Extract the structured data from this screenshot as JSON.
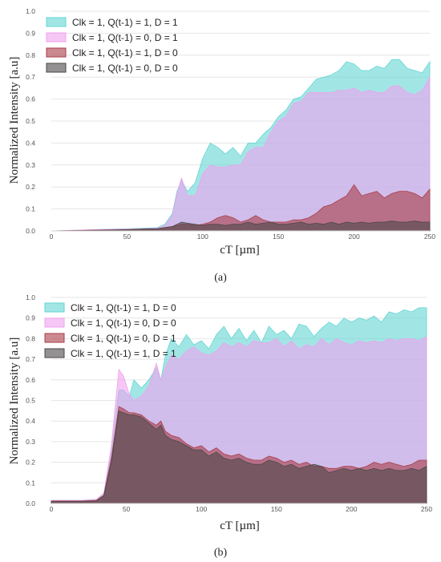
{
  "chart_data": [
    {
      "type": "area",
      "caption": "(a)",
      "xlabel": "cT [µm]",
      "ylabel": "Normalized Intensity [a.u]",
      "xlim": [
        0,
        250
      ],
      "ylim": [
        0,
        1.0
      ],
      "xticks": [
        0,
        50,
        100,
        150,
        200,
        250
      ],
      "yticks": [
        0.0,
        0.1,
        0.2,
        0.3,
        0.4,
        0.5,
        0.6,
        0.7,
        0.8,
        0.9,
        1.0
      ],
      "grid": "horizontal",
      "legend_position": "top-left",
      "x": [
        0,
        25,
        50,
        60,
        70,
        75,
        80,
        83,
        86,
        90,
        95,
        100,
        105,
        110,
        115,
        120,
        125,
        130,
        135,
        140,
        145,
        150,
        155,
        160,
        165,
        170,
        175,
        180,
        185,
        190,
        195,
        200,
        205,
        210,
        215,
        220,
        225,
        230,
        235,
        240,
        245,
        250
      ],
      "series": [
        {
          "name": "Clk = 1, Q(t-1) = 1, D = 1",
          "color": "#62d6d4",
          "values": [
            0.0,
            0.005,
            0.01,
            0.012,
            0.015,
            0.03,
            0.08,
            0.18,
            0.23,
            0.18,
            0.22,
            0.33,
            0.4,
            0.38,
            0.35,
            0.38,
            0.34,
            0.4,
            0.4,
            0.44,
            0.47,
            0.52,
            0.55,
            0.6,
            0.61,
            0.65,
            0.69,
            0.7,
            0.71,
            0.73,
            0.77,
            0.76,
            0.73,
            0.73,
            0.75,
            0.74,
            0.78,
            0.78,
            0.74,
            0.73,
            0.72,
            0.77
          ]
        },
        {
          "name": "Clk = 1, Q(t-1) = 0, D = 1",
          "color": "#f0a2ee",
          "values": [
            0.0,
            0.005,
            0.008,
            0.01,
            0.012,
            0.025,
            0.07,
            0.17,
            0.24,
            0.16,
            0.16,
            0.26,
            0.3,
            0.29,
            0.29,
            0.3,
            0.3,
            0.36,
            0.38,
            0.38,
            0.45,
            0.5,
            0.52,
            0.58,
            0.59,
            0.63,
            0.63,
            0.63,
            0.63,
            0.64,
            0.64,
            0.65,
            0.63,
            0.64,
            0.63,
            0.63,
            0.66,
            0.66,
            0.63,
            0.62,
            0.64,
            0.7
          ]
        },
        {
          "name": "Clk = 1, Q(t-1) = 1, D = 0",
          "color": "#a93c48",
          "values": [
            0.0,
            0.003,
            0.006,
            0.008,
            0.01,
            0.015,
            0.02,
            0.025,
            0.03,
            0.03,
            0.025,
            0.03,
            0.04,
            0.06,
            0.07,
            0.06,
            0.04,
            0.05,
            0.07,
            0.05,
            0.04,
            0.04,
            0.04,
            0.05,
            0.05,
            0.06,
            0.08,
            0.11,
            0.12,
            0.14,
            0.16,
            0.21,
            0.16,
            0.17,
            0.18,
            0.15,
            0.17,
            0.18,
            0.18,
            0.17,
            0.15,
            0.19
          ]
        },
        {
          "name": "Clk = 1, Q(t-1) = 0, D = 0",
          "color": "#4b4747",
          "values": [
            0.0,
            0.002,
            0.005,
            0.008,
            0.01,
            0.015,
            0.02,
            0.03,
            0.04,
            0.035,
            0.03,
            0.025,
            0.03,
            0.03,
            0.025,
            0.03,
            0.03,
            0.04,
            0.03,
            0.035,
            0.04,
            0.03,
            0.03,
            0.035,
            0.04,
            0.03,
            0.035,
            0.03,
            0.04,
            0.03,
            0.04,
            0.035,
            0.04,
            0.035,
            0.04,
            0.04,
            0.045,
            0.04,
            0.04,
            0.045,
            0.04,
            0.04
          ]
        }
      ]
    },
    {
      "type": "area",
      "caption": "(b)",
      "xlabel": "cT [µm]",
      "ylabel": "Normalized Intensity [a.u]",
      "xlim": [
        0,
        250
      ],
      "ylim": [
        0,
        1.0
      ],
      "xticks": [
        0,
        50,
        100,
        150,
        200,
        250
      ],
      "yticks": [
        0.0,
        0.1,
        0.2,
        0.3,
        0.4,
        0.5,
        0.6,
        0.7,
        0.8,
        0.9,
        1.0
      ],
      "grid": "horizontal",
      "legend_position": "top-left",
      "x": [
        0,
        10,
        20,
        30,
        35,
        40,
        45,
        48,
        52,
        55,
        60,
        65,
        70,
        73,
        76,
        80,
        85,
        90,
        95,
        100,
        105,
        110,
        115,
        120,
        125,
        130,
        135,
        140,
        145,
        150,
        155,
        160,
        165,
        170,
        175,
        180,
        185,
        190,
        195,
        200,
        205,
        210,
        215,
        220,
        225,
        230,
        235,
        240,
        245,
        250
      ],
      "series": [
        {
          "name": "Clk = 1, Q(t-1) = 1, D = 0",
          "color": "#62d6d4",
          "values": [
            0.015,
            0.015,
            0.015,
            0.02,
            0.05,
            0.25,
            0.55,
            0.55,
            0.52,
            0.6,
            0.56,
            0.6,
            0.66,
            0.6,
            0.72,
            0.8,
            0.76,
            0.82,
            0.77,
            0.79,
            0.75,
            0.82,
            0.86,
            0.8,
            0.85,
            0.79,
            0.84,
            0.78,
            0.86,
            0.82,
            0.84,
            0.8,
            0.87,
            0.86,
            0.81,
            0.85,
            0.88,
            0.86,
            0.9,
            0.88,
            0.9,
            0.89,
            0.91,
            0.88,
            0.93,
            0.92,
            0.94,
            0.93,
            0.95,
            0.95
          ]
        },
        {
          "name": "Clk = 1, Q(t-1) = 0, D = 0",
          "color": "#f0a2ee",
          "values": [
            0.015,
            0.015,
            0.015,
            0.02,
            0.05,
            0.28,
            0.65,
            0.62,
            0.53,
            0.5,
            0.52,
            0.57,
            0.68,
            0.6,
            0.66,
            0.72,
            0.7,
            0.74,
            0.76,
            0.73,
            0.72,
            0.74,
            0.78,
            0.76,
            0.78,
            0.76,
            0.79,
            0.78,
            0.78,
            0.8,
            0.76,
            0.79,
            0.75,
            0.77,
            0.76,
            0.8,
            0.77,
            0.8,
            0.78,
            0.77,
            0.79,
            0.78,
            0.79,
            0.78,
            0.8,
            0.79,
            0.8,
            0.8,
            0.79,
            0.81
          ]
        },
        {
          "name": "Clk = 1, Q(t-1) = 0, D = 1",
          "color": "#a93c48",
          "values": [
            0.012,
            0.012,
            0.012,
            0.015,
            0.04,
            0.22,
            0.47,
            0.46,
            0.44,
            0.44,
            0.43,
            0.4,
            0.38,
            0.4,
            0.35,
            0.33,
            0.32,
            0.29,
            0.27,
            0.28,
            0.25,
            0.27,
            0.24,
            0.23,
            0.24,
            0.22,
            0.21,
            0.21,
            0.23,
            0.22,
            0.2,
            0.21,
            0.19,
            0.2,
            0.18,
            0.18,
            0.17,
            0.17,
            0.18,
            0.18,
            0.17,
            0.18,
            0.2,
            0.19,
            0.2,
            0.19,
            0.18,
            0.19,
            0.21,
            0.21
          ]
        },
        {
          "name": "Clk = 1, Q(t-1) = 1, D = 1",
          "color": "#4b4747",
          "values": [
            0.01,
            0.01,
            0.01,
            0.012,
            0.035,
            0.2,
            0.45,
            0.44,
            0.43,
            0.43,
            0.42,
            0.39,
            0.36,
            0.38,
            0.33,
            0.31,
            0.3,
            0.28,
            0.26,
            0.26,
            0.23,
            0.25,
            0.22,
            0.21,
            0.22,
            0.2,
            0.19,
            0.19,
            0.21,
            0.2,
            0.18,
            0.19,
            0.17,
            0.18,
            0.19,
            0.18,
            0.15,
            0.16,
            0.17,
            0.16,
            0.17,
            0.16,
            0.17,
            0.16,
            0.17,
            0.16,
            0.16,
            0.17,
            0.16,
            0.18
          ]
        }
      ]
    }
  ]
}
